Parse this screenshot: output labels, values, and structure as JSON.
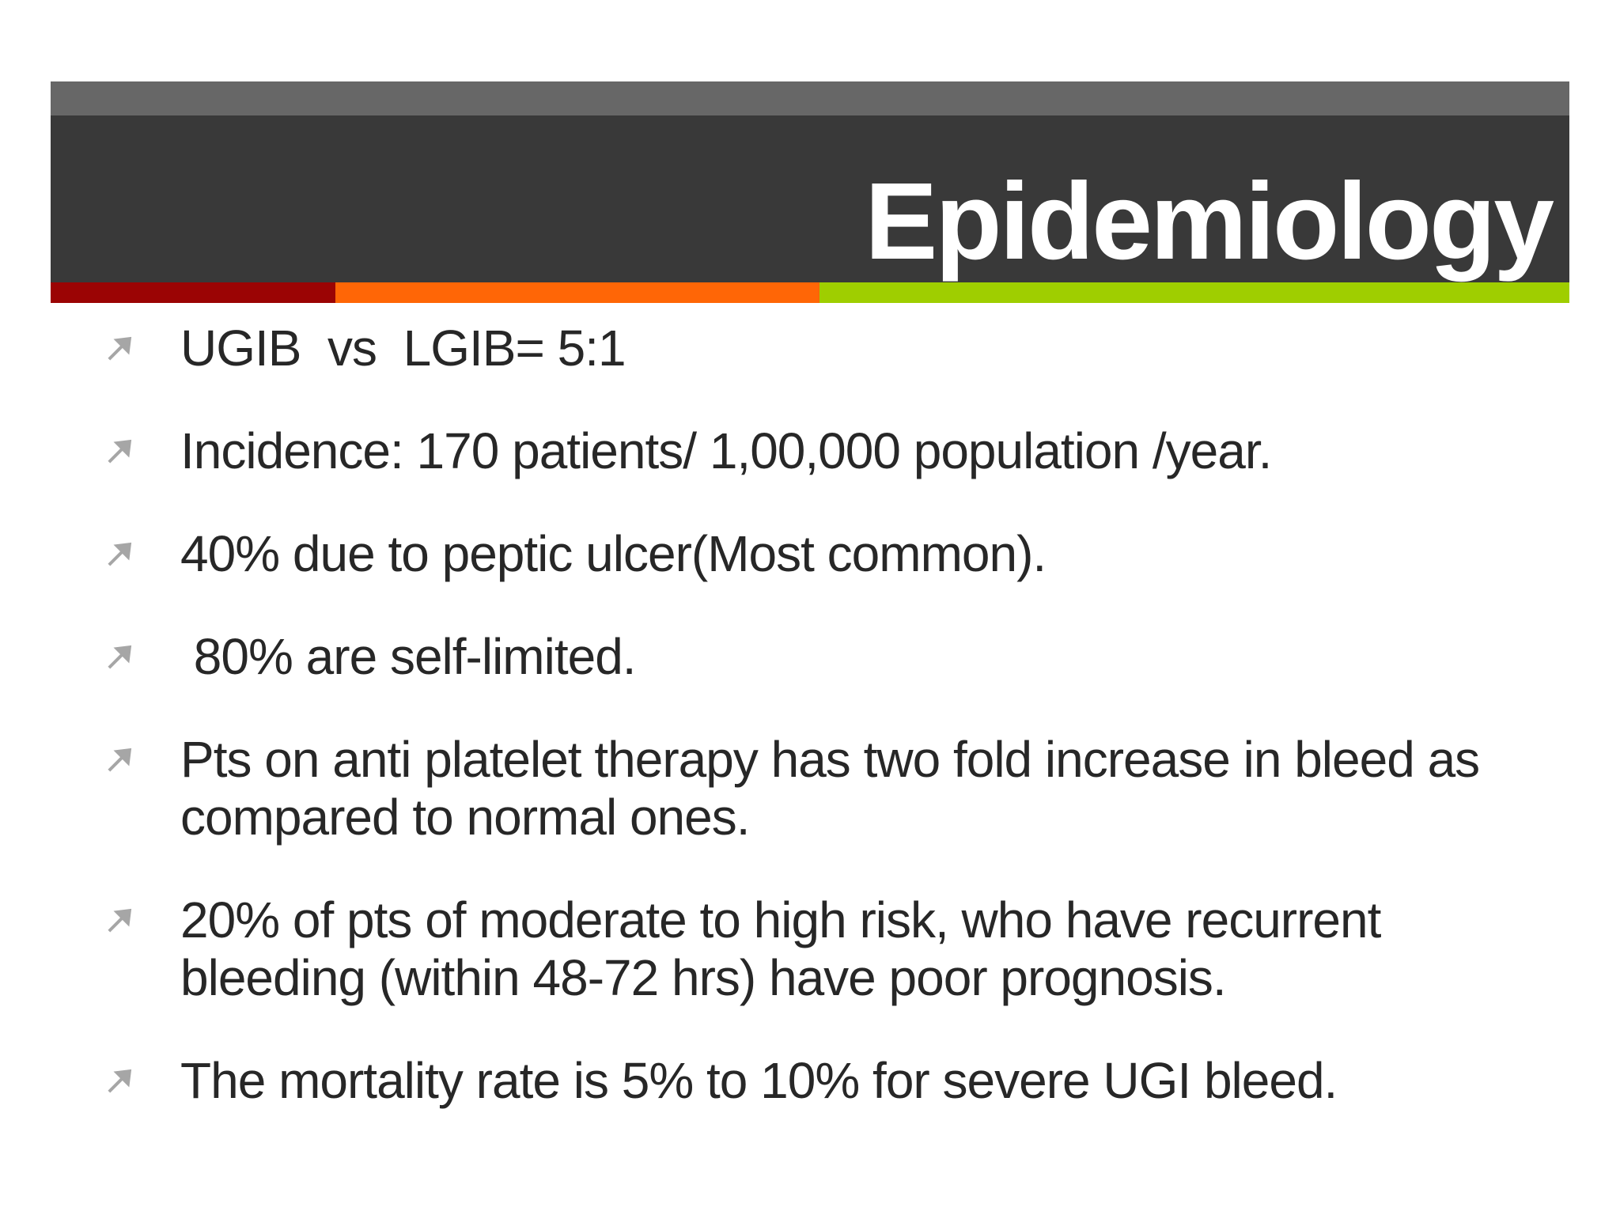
{
  "slide": {
    "title": "Epidemiology",
    "bullets": [
      {
        "lines": [
          "UGIB  vs  LGIB= 5:1"
        ]
      },
      {
        "lines": [
          "Incidence: 170 patients/ 1,00,000 population /year."
        ]
      },
      {
        "lines": [
          "40% due to peptic ulcer(Most common)."
        ]
      },
      {
        "lines": [
          " 80% are self-limited."
        ]
      },
      {
        "lines": [
          "Pts on anti platelet therapy has two fold increase in bleed as",
          "compared to normal ones."
        ]
      },
      {
        "lines": [
          "20% of pts of moderate to high risk, who have recurrent",
          "bleeding (within 48-72 hrs) have poor prognosis."
        ]
      },
      {
        "lines": [
          "The mortality rate is 5% to 10% for severe UGI bleed."
        ]
      }
    ],
    "bullet_icon": "northeast-arrow-icon"
  },
  "colors": {
    "header_strip": "#676767",
    "header_band": "#393939",
    "stripe_dark_red": "#9b0404",
    "stripe_orange": "#ff6606",
    "stripe_green": "#9fce00",
    "bullet_arrow": "#a6a6a6",
    "body_text": "#272727",
    "title_text": "#ffffff"
  }
}
